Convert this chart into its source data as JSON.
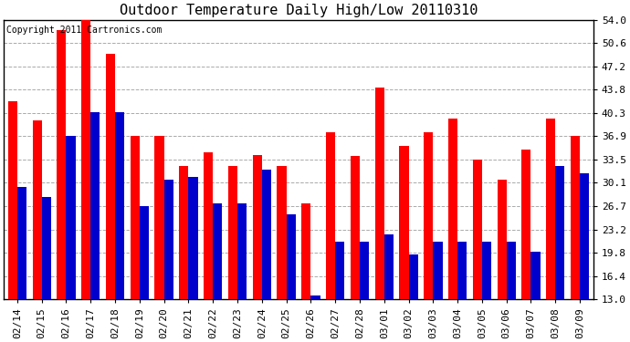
{
  "title": "Outdoor Temperature Daily High/Low 20110310",
  "copyright": "Copyright 2011 Cartronics.com",
  "dates": [
    "02/14",
    "02/15",
    "02/16",
    "02/17",
    "02/18",
    "02/19",
    "02/20",
    "02/21",
    "02/22",
    "02/23",
    "02/24",
    "02/25",
    "02/26",
    "02/27",
    "02/28",
    "03/01",
    "03/02",
    "03/03",
    "03/04",
    "03/05",
    "03/06",
    "03/07",
    "03/08",
    "03/09"
  ],
  "highs": [
    42.0,
    39.2,
    52.5,
    54.0,
    49.0,
    36.9,
    36.9,
    32.5,
    34.5,
    32.5,
    34.2,
    32.5,
    27.0,
    37.5,
    34.0,
    44.0,
    35.5,
    37.5,
    39.5,
    33.5,
    30.5,
    35.0,
    39.5,
    36.9
  ],
  "lows": [
    29.5,
    28.0,
    37.0,
    40.5,
    40.5,
    26.7,
    30.5,
    31.0,
    27.0,
    27.0,
    32.0,
    25.5,
    13.5,
    21.5,
    21.5,
    22.5,
    19.5,
    21.5,
    21.5,
    21.5,
    21.5,
    20.0,
    32.5,
    31.5
  ],
  "high_color": "#ff0000",
  "low_color": "#0000cc",
  "bg_color": "#ffffff",
  "grid_color": "#aaaaaa",
  "ymin": 13.0,
  "ymax": 54.0,
  "yticks": [
    13.0,
    16.4,
    19.8,
    23.2,
    26.7,
    30.1,
    33.5,
    36.9,
    40.3,
    43.8,
    47.2,
    50.6,
    54.0
  ],
  "title_fontsize": 11,
  "copyright_fontsize": 7,
  "tick_fontsize": 8,
  "bar_width": 0.38,
  "bar_gap": 0.0
}
